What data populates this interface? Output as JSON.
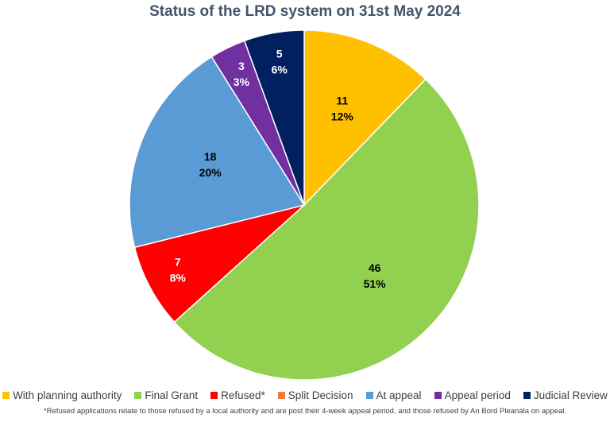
{
  "chart_data": {
    "type": "pie",
    "title": "Status of the LRD system on 31st May 2024",
    "categories": [
      "With planning authority",
      "Final Grant",
      "Refused*",
      "Split Decision",
      "At appeal",
      "Appeal period",
      "Judicial Review"
    ],
    "values": [
      11,
      46,
      7,
      0,
      18,
      3,
      5
    ],
    "percent_labels": [
      "12%",
      "51%",
      "8%",
      "",
      "20%",
      "3%",
      "6%"
    ],
    "colors": [
      "#ffc000",
      "#92d050",
      "#ff0000",
      "#ed7d31",
      "#5b9bd5",
      "#7030a0",
      "#002060"
    ],
    "start_angle": "top",
    "direction": "clockwise",
    "legend_position": "bottom",
    "footnote": "*Refused applications relate to those refused by a local authority and are post their 4-week appeal period, and those refused by An Bord Pleanála on appeal."
  }
}
